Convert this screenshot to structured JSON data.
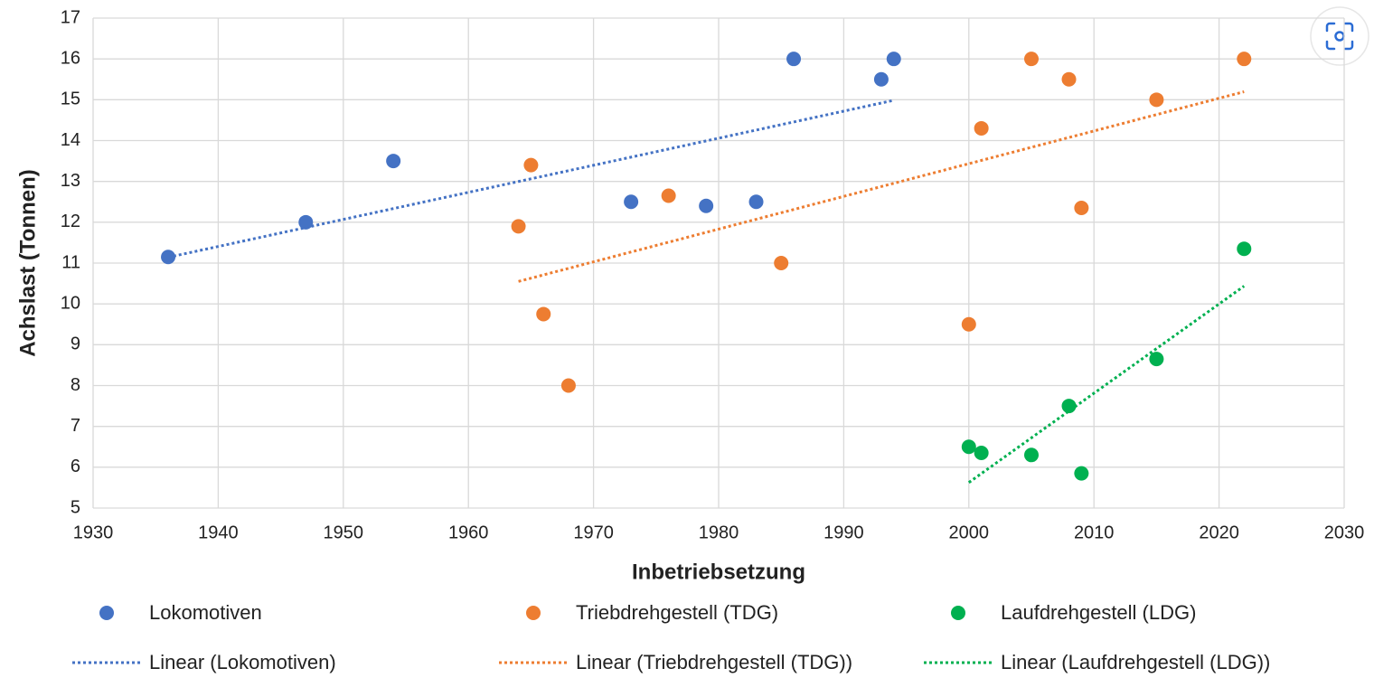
{
  "chart_data": {
    "type": "scatter",
    "x_label": "Inbetriebsetzung",
    "y_label": "Achslast (Tonnen)",
    "xlim": [
      1930,
      2030
    ],
    "xticks": [
      1930,
      1940,
      1950,
      1960,
      1970,
      1980,
      1990,
      2000,
      2010,
      2020,
      2030
    ],
    "ylim": [
      5,
      17
    ],
    "yticks": [
      5,
      6,
      7,
      8,
      9,
      10,
      11,
      12,
      13,
      14,
      15,
      16,
      17
    ],
    "grid": true,
    "series": [
      {
        "name": "Lokomotiven",
        "color": "#4472c4",
        "trend_name": "Linear (Lokomotiven)",
        "x": [
          1936,
          1947,
          1954,
          1973,
          1979,
          1983,
          1986,
          1993,
          1994
        ],
        "values": [
          11.15,
          12.0,
          13.5,
          12.5,
          12.4,
          12.5,
          16.0,
          15.5,
          16.0
        ]
      },
      {
        "name": "Triebdrehgestell (TDG)",
        "color": "#ed7d31",
        "trend_name": "Linear (Triebdrehgestell (TDG))",
        "x": [
          1964,
          1965,
          1966,
          1968,
          1976,
          1985,
          2000,
          2001,
          2005,
          2008,
          2009,
          2015,
          2022
        ],
        "values": [
          11.9,
          13.4,
          9.75,
          8.0,
          12.65,
          11.0,
          9.5,
          14.3,
          16.0,
          15.5,
          12.35,
          15.0,
          16.0
        ]
      },
      {
        "name": "Laufdrehgestell (LDG)",
        "color": "#00b050",
        "trend_name": "Linear (Laufdrehgestell (LDG))",
        "x": [
          2000,
          2001,
          2005,
          2008,
          2009,
          2015,
          2022
        ],
        "values": [
          6.5,
          6.35,
          6.3,
          7.5,
          5.85,
          8.65,
          11.35
        ]
      }
    ]
  }
}
